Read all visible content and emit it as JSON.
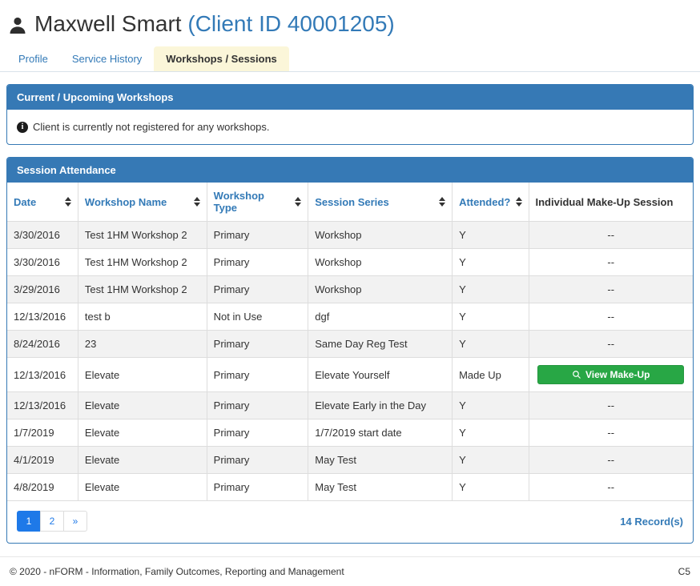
{
  "header": {
    "client_name": "Maxwell Smart",
    "client_id_text": "(Client ID 40001205)"
  },
  "tabs": [
    {
      "label": "Profile",
      "active": false
    },
    {
      "label": "Service History",
      "active": false
    },
    {
      "label": "Workshops / Sessions",
      "active": true
    }
  ],
  "upcoming_panel": {
    "title": "Current / Upcoming Workshops",
    "info_icon_glyph": "i",
    "message": "Client is currently not registered for any workshops."
  },
  "attendance_panel": {
    "title": "Session Attendance",
    "columns": [
      {
        "label": "Date",
        "sortable": true
      },
      {
        "label": "Workshop Name",
        "sortable": true
      },
      {
        "label": "Workshop Type",
        "sortable": true
      },
      {
        "label": "Session Series",
        "sortable": true
      },
      {
        "label": "Attended?",
        "sortable": true
      },
      {
        "label": "Individual Make-Up Session",
        "sortable": false
      }
    ],
    "rows": [
      {
        "date": "3/30/2016",
        "workshop_name": "Test 1HM Workshop 2",
        "workshop_type": "Primary",
        "session_series": "Workshop",
        "attended": "Y",
        "makeup": "--"
      },
      {
        "date": "3/30/2016",
        "workshop_name": "Test 1HM Workshop 2",
        "workshop_type": "Primary",
        "session_series": "Workshop",
        "attended": "Y",
        "makeup": "--"
      },
      {
        "date": "3/29/2016",
        "workshop_name": "Test 1HM Workshop 2",
        "workshop_type": "Primary",
        "session_series": "Workshop",
        "attended": "Y",
        "makeup": "--"
      },
      {
        "date": "12/13/2016",
        "workshop_name": "test b",
        "workshop_type": "Not in Use",
        "session_series": "dgf",
        "attended": "Y",
        "makeup": "--"
      },
      {
        "date": "8/24/2016",
        "workshop_name": "23",
        "workshop_type": "Primary",
        "session_series": "Same Day Reg Test",
        "attended": "Y",
        "makeup": "--"
      },
      {
        "date": "12/13/2016",
        "workshop_name": "Elevate",
        "workshop_type": "Primary",
        "session_series": "Elevate Yourself",
        "attended": "Made Up",
        "makeup_button": "View Make-Up"
      },
      {
        "date": "12/13/2016",
        "workshop_name": "Elevate",
        "workshop_type": "Primary",
        "session_series": "Elevate Early in the Day",
        "attended": "Y",
        "makeup": "--"
      },
      {
        "date": "1/7/2019",
        "workshop_name": "Elevate",
        "workshop_type": "Primary",
        "session_series": "1/7/2019 start date",
        "attended": "Y",
        "makeup": "--"
      },
      {
        "date": "4/1/2019",
        "workshop_name": "Elevate",
        "workshop_type": "Primary",
        "session_series": "May Test",
        "attended": "Y",
        "makeup": "--"
      },
      {
        "date": "4/8/2019",
        "workshop_name": "Elevate",
        "workshop_type": "Primary",
        "session_series": "May Test",
        "attended": "Y",
        "makeup": "--"
      }
    ],
    "pagination": {
      "items": [
        "1",
        "2",
        "»"
      ],
      "active_index": 0
    },
    "record_count": "14 Record(s)"
  },
  "footer": {
    "copyright": "© 2020 - nFORM - Information, Family Outcomes, Reporting and Management",
    "page_code": "C5"
  },
  "colors": {
    "panel_blue": "#3679B5",
    "link_blue": "#337AB7",
    "active_tab_yellow": "#FBF6D9",
    "button_green": "#28A745",
    "pagination_active_blue": "#1E79E8",
    "row_stripe_gray": "#F2F2F2"
  }
}
